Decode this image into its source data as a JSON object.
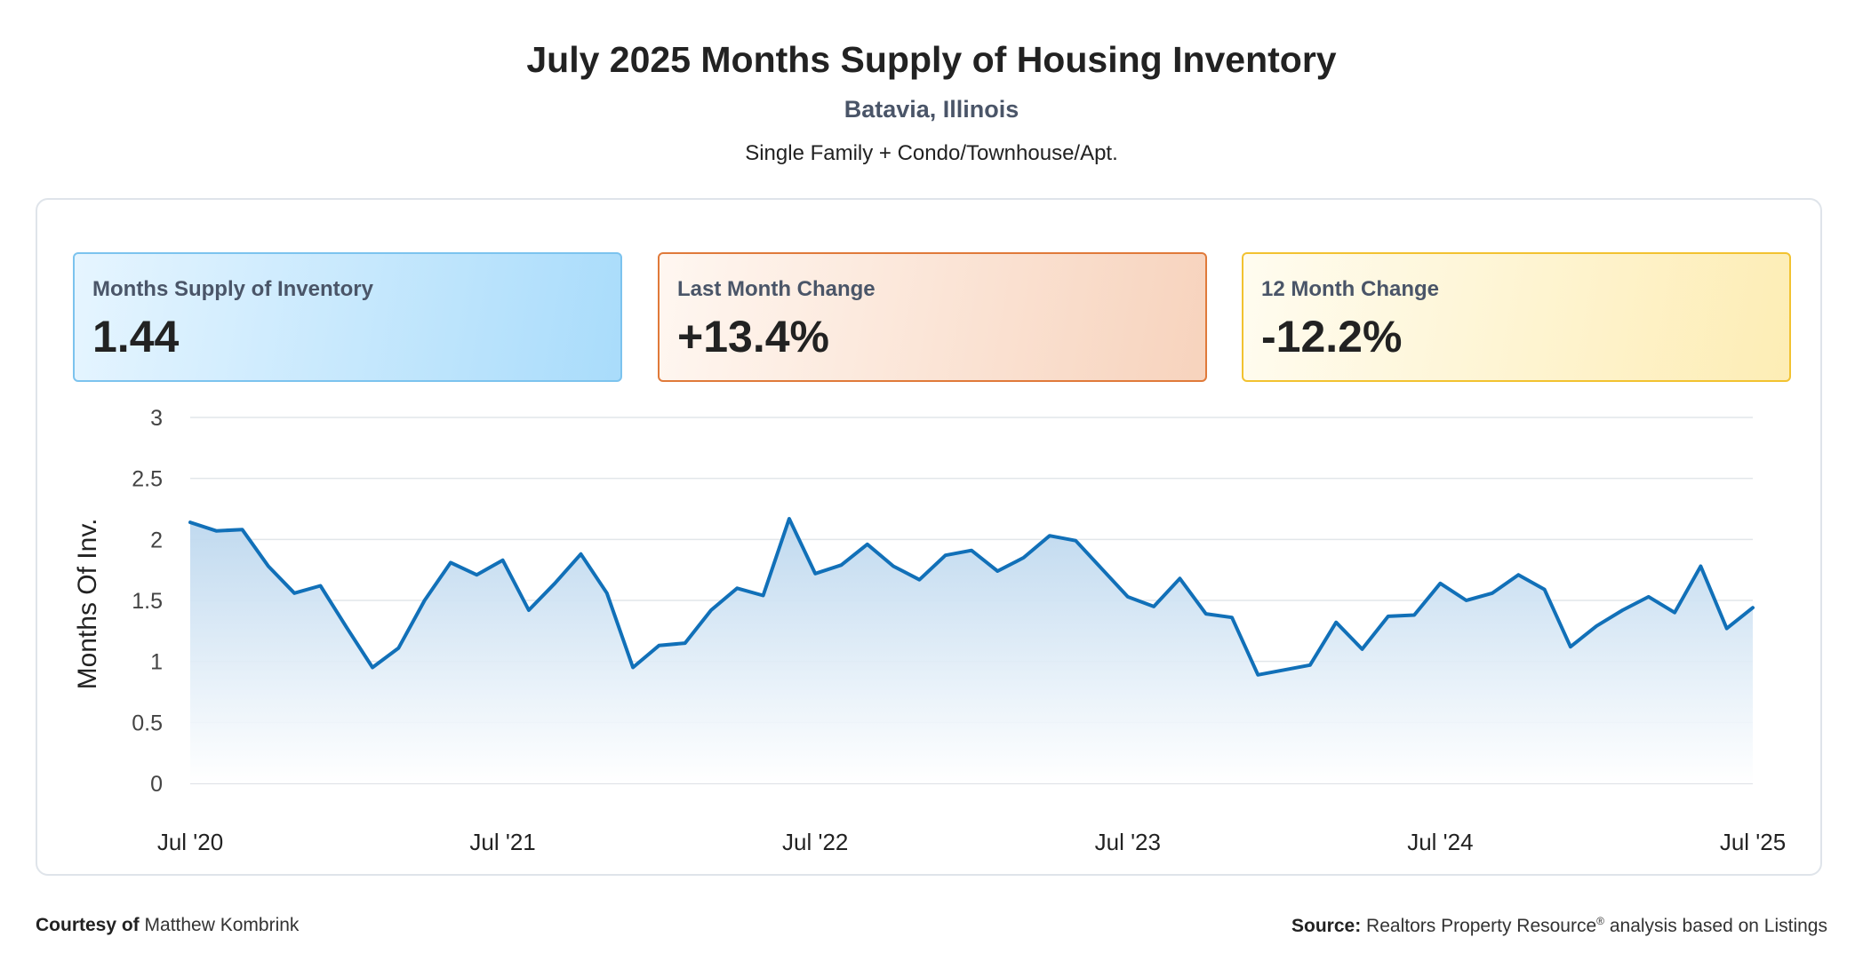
{
  "header": {
    "title": "July 2025 Months Supply of Housing Inventory",
    "location": "Batavia, Illinois",
    "segment": "Single Family + Condo/Townhouse/Apt."
  },
  "cards": [
    {
      "label": "Months Supply of Inventory",
      "value": "1.44"
    },
    {
      "label": "Last Month Change",
      "value": "+13.4%"
    },
    {
      "label": "12 Month Change",
      "value": "-12.2%"
    }
  ],
  "colors": {
    "line": "#1170b8",
    "card1_border": "#7cc3ee",
    "card2_border": "#e07a3a",
    "card3_border": "#f2c230"
  },
  "footer": {
    "courtesy_label": "Courtesy of",
    "courtesy_name": "Matthew Kombrink",
    "source_label": "Source:",
    "source_text_a": "Realtors Property Resource",
    "source_reg": "®",
    "source_text_b": " analysis based on Listings"
  },
  "chart_data": {
    "type": "area",
    "title": "July 2025 Months Supply of Housing Inventory",
    "ylabel": "Months Of Inv.",
    "xlabel": "",
    "ylim": [
      0,
      3
    ],
    "yticks": [
      "0",
      "0.5",
      "1",
      "1.5",
      "2",
      "2.5",
      "3"
    ],
    "ytick_values": [
      0,
      0.5,
      1,
      1.5,
      2,
      2.5,
      3
    ],
    "xtick_labels": [
      "Jul '20",
      "Jul '21",
      "Jul '22",
      "Jul '23",
      "Jul '24",
      "Jul '25"
    ],
    "xtick_indices": [
      0,
      12,
      24,
      36,
      48,
      60
    ],
    "grid": true,
    "series": [
      {
        "name": "Months Supply of Inventory",
        "values": [
          2.14,
          2.07,
          2.08,
          1.78,
          1.56,
          1.62,
          1.28,
          0.95,
          1.11,
          1.5,
          1.81,
          1.71,
          1.83,
          1.42,
          1.64,
          1.88,
          1.56,
          0.95,
          1.13,
          1.15,
          1.42,
          1.6,
          1.54,
          2.17,
          1.72,
          1.79,
          1.96,
          1.78,
          1.67,
          1.87,
          1.91,
          1.74,
          1.85,
          2.03,
          1.99,
          1.76,
          1.53,
          1.45,
          1.68,
          1.39,
          1.36,
          0.89,
          0.93,
          0.97,
          1.32,
          1.1,
          1.37,
          1.38,
          1.64,
          1.5,
          1.56,
          1.71,
          1.59,
          1.12,
          1.29,
          1.42,
          1.53,
          1.4,
          1.78,
          1.27,
          1.44
        ]
      }
    ]
  }
}
